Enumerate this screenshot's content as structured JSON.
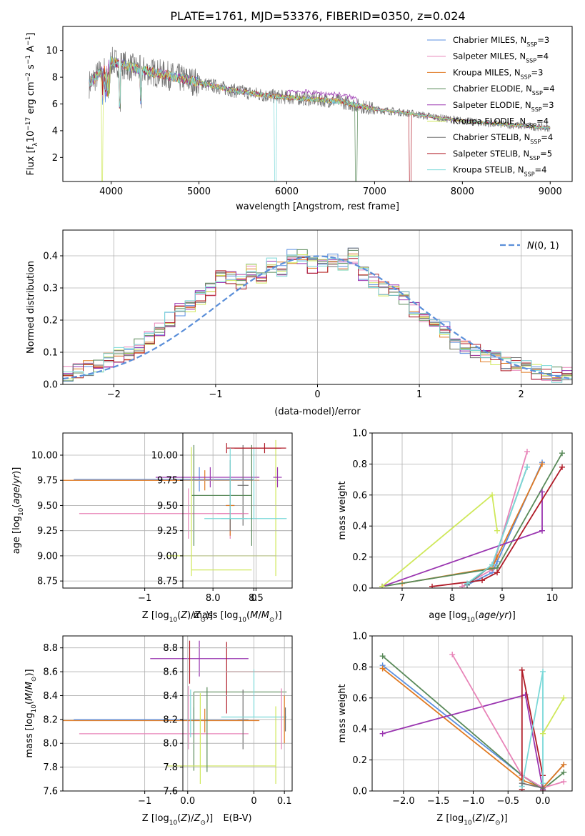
{
  "title": "PLATE=1761, MJD=53376, FIBERID=0350, z=0.024",
  "colors": {
    "chabrier_miles": "#5a8fe0",
    "salpeter_miles": "#e884b8",
    "kroupa_miles": "#e07a22",
    "chabrier_elodie": "#5a8a5a",
    "salpeter_elodie": "#9a35b0",
    "kroupa_elodie": "#cfe85a",
    "chabrier_stelib": "#707070",
    "salpeter_stelib": "#b01c28",
    "kroupa_stelib": "#7ad8d8",
    "normal": "#5b8fd9",
    "grid": "#b0b0b0"
  },
  "chart_data": [
    {
      "id": "spectrum",
      "type": "line",
      "xlabel": "wavelength [Angstrom, rest frame]",
      "ylabel": "Flux [f",
      "xlim": [
        3450,
        9250
      ],
      "ylim": [
        0.2,
        11.8
      ],
      "xticks": [
        4000,
        5000,
        6000,
        7000,
        8000,
        9000
      ],
      "yticks": [
        2,
        4,
        6,
        8,
        10
      ],
      "legend_position": "top-right",
      "series": [
        {
          "name": "Chabrier MILES, N",
          "nssp": "=3",
          "key": "chabrier_miles"
        },
        {
          "name": "Salpeter MILES, N",
          "nssp": "=4",
          "key": "salpeter_miles"
        },
        {
          "name": "Kroupa MILES, N",
          "nssp": "=3",
          "key": "kroupa_miles"
        },
        {
          "name": "Chabrier ELODIE, N",
          "nssp": "=4",
          "key": "chabrier_elodie"
        },
        {
          "name": "Salpeter ELODIE, N",
          "nssp": "=3",
          "key": "salpeter_elodie"
        },
        {
          "name": "Kroupa ELODIE, N",
          "nssp": "=4",
          "key": "kroupa_elodie"
        },
        {
          "name": "Chabrier STELIB, N",
          "nssp": "=4",
          "key": "chabrier_stelib"
        },
        {
          "name": "Salpeter STELIB, N",
          "nssp": "=5",
          "key": "salpeter_stelib"
        },
        {
          "name": "Kroupa STELIB, N",
          "nssp": "=4",
          "key": "kroupa_stelib"
        }
      ],
      "data_x": [
        3750,
        4000,
        4300,
        4600,
        5000,
        5400,
        5800,
        6200,
        6600,
        7000,
        7400,
        7800,
        8200,
        8600,
        9000
      ],
      "data_y": [
        7.5,
        9.2,
        8.6,
        8.2,
        7.6,
        7.0,
        6.6,
        6.4,
        6.2,
        5.6,
        5.3,
        4.9,
        4.6,
        4.4,
        4.2
      ]
    },
    {
      "id": "residuals",
      "type": "histogram",
      "xlabel": "(data-model)/error",
      "ylabel": "Normed distribution",
      "xlim": [
        -2.5,
        2.5
      ],
      "ylim": [
        0,
        0.48
      ],
      "xticks": [
        -2,
        -1,
        0,
        1,
        2
      ],
      "yticks": [
        0.0,
        0.1,
        0.2,
        0.3,
        0.4
      ],
      "legend": "N(0,1)",
      "bins": [
        -2.5,
        -2.4,
        -2.3,
        -2.2,
        -2.1,
        -2.0,
        -1.9,
        -1.8,
        -1.7,
        -1.6,
        -1.5,
        -1.4,
        -1.3,
        -1.2,
        -1.1,
        -1.0,
        -0.9,
        -0.8,
        -0.7,
        -0.6,
        -0.5,
        -0.4,
        -0.3,
        -0.2,
        -0.1,
        0.0,
        0.1,
        0.2,
        0.3,
        0.4,
        0.5,
        0.6,
        0.7,
        0.8,
        0.9,
        1.0,
        1.1,
        1.2,
        1.3,
        1.4,
        1.5,
        1.6,
        1.7,
        1.8,
        1.9,
        2.0,
        2.1,
        2.2,
        2.3,
        2.4
      ],
      "approx_density": [
        0.035,
        0.04,
        0.05,
        0.06,
        0.075,
        0.09,
        0.1,
        0.12,
        0.14,
        0.17,
        0.2,
        0.23,
        0.25,
        0.27,
        0.3,
        0.33,
        0.33,
        0.32,
        0.35,
        0.34,
        0.37,
        0.36,
        0.4,
        0.4,
        0.37,
        0.37,
        0.39,
        0.37,
        0.4,
        0.34,
        0.32,
        0.3,
        0.3,
        0.27,
        0.23,
        0.2,
        0.19,
        0.17,
        0.13,
        0.12,
        0.1,
        0.09,
        0.08,
        0.06,
        0.06,
        0.05,
        0.04,
        0.035,
        0.03,
        0.03
      ]
    },
    {
      "id": "age_vs_z",
      "type": "errorbar",
      "xlabel": "Z [log",
      "ylabel": "age  [log",
      "xlim": [
        -1.75,
        0.35
      ],
      "ylim": [
        8.68,
        10.22
      ],
      "xticks": [
        -1,
        0
      ],
      "yticks": [
        8.75,
        9.0,
        9.25,
        9.5,
        9.75,
        10.0
      ],
      "points": [
        {
          "key": "chabrier_miles",
          "x": -0.5,
          "xerr": [
            1.15,
            0.5
          ],
          "y": 9.76,
          "yerr": [
            0.12,
            0.12
          ]
        },
        {
          "key": "salpeter_miles",
          "x": -0.6,
          "xerr": [
            1.0,
            0.55
          ],
          "y": 9.42,
          "yerr": [
            0.25,
            0.25
          ]
        },
        {
          "key": "kroupa_miles",
          "x": -0.45,
          "xerr": [
            1.3,
            0.5
          ],
          "y": 9.75,
          "yerr": [
            0.1,
            0.1
          ]
        },
        {
          "key": "chabrier_elodie",
          "x": -0.55,
          "xerr": [
            0.0,
            0.0
          ],
          "y": 9.6,
          "yerr": [
            0.5,
            0.5
          ]
        },
        {
          "key": "salpeter_elodie",
          "x": -0.4,
          "xerr": [
            0.5,
            0.45
          ],
          "y": 9.78,
          "yerr": [
            0.1,
            0.1
          ]
        },
        {
          "key": "kroupa_elodie",
          "x": 0.2,
          "xerr": [
            1.0,
            0.0
          ],
          "y": 9.0,
          "yerr": [
            0.2,
            1.15
          ]
        },
        {
          "key": "chabrier_stelib",
          "x": -0.1,
          "xerr": [
            0.05,
            0.05
          ],
          "y": 9.7,
          "yerr": [
            0.4,
            0.4
          ]
        },
        {
          "key": "salpeter_stelib",
          "x": -0.25,
          "xerr": [
            0.0,
            0.5
          ],
          "y": 10.07,
          "yerr": [
            0.05,
            0.05
          ]
        },
        {
          "key": "kroupa_stelib",
          "x": 0.0,
          "xerr": [
            0.3,
            0.3
          ],
          "y": 9.37,
          "yerr": [
            0.0,
            0.7
          ]
        }
      ]
    },
    {
      "id": "age_vs_mass",
      "type": "errorbar",
      "xlabel": "mass [log",
      "ylabel": "",
      "xlim": [
        7.65,
        8.92
      ],
      "ylim": [
        8.68,
        10.22
      ],
      "xticks": [
        8.0,
        8.5
      ],
      "yticks": [
        8.75,
        9.0,
        9.25,
        9.5,
        9.75,
        10.0
      ],
      "points": [
        {
          "key": "chabrier_miles",
          "x": 8.2,
          "xerr": [
            0.05,
            0.05
          ],
          "y": 9.5,
          "yerr": [
            0.3,
            0.3
          ]
        },
        {
          "key": "salpeter_miles",
          "x": 8.2,
          "xerr": [
            0.15,
            0.15
          ],
          "y": 9.42,
          "yerr": [
            0.25,
            0.25
          ]
        },
        {
          "key": "kroupa_miles",
          "x": 8.2,
          "xerr": [
            0.05,
            0.05
          ],
          "y": 9.5,
          "yerr": [
            0.3,
            0.3
          ]
        },
        {
          "key": "chabrier_elodie",
          "x": 8.45,
          "xerr": [
            0.7,
            0.0
          ],
          "y": 9.6,
          "yerr": [
            0.5,
            0.5
          ]
        },
        {
          "key": "salpeter_elodie",
          "x": 8.75,
          "xerr": [
            0.05,
            0.05
          ],
          "y": 9.78,
          "yerr": [
            0.1,
            0.1
          ]
        },
        {
          "key": "kroupa_elodie",
          "x": 7.75,
          "xerr": [
            0.0,
            0.7
          ],
          "y": 8.86,
          "yerr": [
            0.06,
            1.22
          ]
        },
        {
          "key": "chabrier_stelib",
          "x": 8.2,
          "xerr": [
            0.0,
            0.0
          ],
          "y": 9.6,
          "yerr": [
            0.35,
            0.35
          ]
        },
        {
          "key": "salpeter_stelib",
          "x": 8.6,
          "xerr": [
            0.35,
            0.25
          ],
          "y": 10.07,
          "yerr": [
            0.05,
            0.05
          ]
        },
        {
          "key": "kroupa_stelib",
          "x": 8.2,
          "xerr": [
            0.3,
            0.2
          ],
          "y": 9.37,
          "yerr": [
            0.0,
            0.7
          ]
        }
      ]
    },
    {
      "id": "weight_vs_age",
      "type": "line",
      "xlabel": "age  [log",
      "ylabel": "mass weight",
      "xlim": [
        6.4,
        10.4
      ],
      "ylim": [
        0,
        1.0
      ],
      "xticks": [
        7,
        8,
        9,
        10
      ],
      "yticks": [
        0.0,
        0.2,
        0.4,
        0.6,
        0.8,
        1.0
      ],
      "series": [
        {
          "key": "chabrier_miles",
          "x": [
            8.3,
            8.8,
            8.9,
            9.8
          ],
          "y": [
            0.02,
            0.1,
            0.17,
            0.81
          ]
        },
        {
          "key": "salpeter_miles",
          "x": [
            8.2,
            8.8,
            9.5
          ],
          "y": [
            0.01,
            0.12,
            0.88
          ]
        },
        {
          "key": "kroupa_miles",
          "x": [
            7.0,
            8.8,
            8.9,
            9.8
          ],
          "y": [
            0.03,
            0.13,
            0.2,
            0.8
          ]
        },
        {
          "key": "chabrier_elodie",
          "x": [
            6.6,
            8.9,
            10.2
          ],
          "y": [
            0.01,
            0.13,
            0.87
          ]
        },
        {
          "key": "salpeter_elodie",
          "x": [
            6.6,
            9.8,
            9.8
          ],
          "y": [
            0.01,
            0.37,
            0.62
          ]
        },
        {
          "key": "kroupa_elodie",
          "x": [
            6.6,
            8.8,
            8.9
          ],
          "y": [
            0.01,
            0.6,
            0.37
          ]
        },
        {
          "key": "chabrier_stelib",
          "x": [
            8.3,
            8.8,
            9.5
          ],
          "y": [
            0.02,
            0.15,
            0.78
          ]
        },
        {
          "key": "salpeter_stelib",
          "x": [
            7.6,
            8.6,
            8.9,
            10.2
          ],
          "y": [
            0.01,
            0.05,
            0.1,
            0.78
          ]
        },
        {
          "key": "kroupa_stelib",
          "x": [
            8.3,
            8.8,
            9.5
          ],
          "y": [
            0.03,
            0.15,
            0.78
          ]
        }
      ]
    },
    {
      "id": "mass_vs_z",
      "type": "errorbar",
      "xlabel": "Z [log",
      "ylabel": "mass [log",
      "xlim": [
        -1.75,
        0.35
      ],
      "ylim": [
        7.6,
        8.9
      ],
      "xticks": [
        -1,
        0
      ],
      "yticks": [
        7.6,
        7.8,
        8.0,
        8.2,
        8.4,
        8.6,
        8.8
      ],
      "points": [
        {
          "key": "chabrier_miles",
          "x": -0.55,
          "xerr": [
            1.1,
            0.5
          ],
          "y": 8.2,
          "yerr": [
            0.1,
            0.1
          ]
        },
        {
          "key": "salpeter_miles",
          "x": -0.6,
          "xerr": [
            1.0,
            0.55
          ],
          "y": 8.08,
          "yerr": [
            0.13,
            0.4
          ]
        },
        {
          "key": "kroupa_miles",
          "x": -0.45,
          "xerr": [
            1.3,
            0.5
          ],
          "y": 8.19,
          "yerr": [
            0.1,
            0.1
          ]
        },
        {
          "key": "chabrier_elodie",
          "x": -0.55,
          "xerr": [
            0.0,
            0.85
          ],
          "y": 8.43,
          "yerr": [
            0.66,
            0.0
          ]
        },
        {
          "key": "salpeter_elodie",
          "x": -0.5,
          "xerr": [
            0.45,
            0.45
          ],
          "y": 8.71,
          "yerr": [
            0.15,
            0.15
          ]
        },
        {
          "key": "kroupa_elodie",
          "x": 0.2,
          "xerr": [
            1.0,
            0.0
          ],
          "y": 7.81,
          "yerr": [
            0.15,
            0.5
          ]
        },
        {
          "key": "chabrier_stelib",
          "x": -0.1,
          "xerr": [
            0.05,
            0.05
          ],
          "y": 8.2,
          "yerr": [
            0.25,
            0.25
          ]
        },
        {
          "key": "salpeter_stelib",
          "x": -0.25,
          "xerr": [
            0.0,
            0.5
          ],
          "y": 8.6,
          "yerr": [
            0.35,
            0.25
          ]
        },
        {
          "key": "kroupa_stelib",
          "x": 0.0,
          "xerr": [
            0.3,
            0.3
          ],
          "y": 8.22,
          "yerr": [
            0.0,
            0.4
          ]
        }
      ]
    },
    {
      "id": "mass_vs_ebv",
      "type": "errorbar",
      "xlabel": "E(B-V)",
      "ylabel": "",
      "xlim": [
        -0.005,
        0.108
      ],
      "ylim": [
        7.6,
        8.9
      ],
      "xticks": [
        0.0,
        0.1
      ],
      "yticks": [
        7.6,
        7.8,
        8.0,
        8.2,
        8.4,
        8.6,
        8.8
      ],
      "points": [
        {
          "key": "salpeter_stelib",
          "x": 0.002,
          "yerr": [
            8.5,
            8.86
          ]
        },
        {
          "key": "kroupa_stelib",
          "x": 0.003,
          "yerr": [
            8.05,
            8.45
          ]
        },
        {
          "key": "kroupa_elodie",
          "x": 0.013,
          "yerr": [
            7.66,
            8.42
          ]
        },
        {
          "key": "chabrier_elodie",
          "x": 0.02,
          "yerr": [
            7.76,
            8.47
          ]
        },
        {
          "key": "salpeter_miles",
          "x": 0.097,
          "yerr": [
            7.95,
            8.46
          ]
        },
        {
          "key": "kroupa_miles",
          "x": 0.1,
          "yerr": [
            8.0,
            8.4
          ]
        },
        {
          "key": "chabrier_stelib",
          "x": 0.101,
          "yerr": [
            8.1,
            8.3
          ]
        }
      ]
    },
    {
      "id": "weight_vs_z",
      "type": "line",
      "xlabel": "Z [log",
      "ylabel": "mass weight",
      "xlim": [
        -2.45,
        0.42
      ],
      "ylim": [
        0,
        1.0
      ],
      "xticks": [
        -2.0,
        -1.5,
        -1.0,
        -0.5,
        0.0
      ],
      "yticks": [
        0.0,
        0.2,
        0.4,
        0.6,
        0.8,
        1.0
      ],
      "series": [
        {
          "key": "chabrier_miles",
          "x": [
            -2.3,
            -0.3,
            0.0,
            0.3
          ],
          "y": [
            0.81,
            0.1,
            0.02,
            0.17
          ]
        },
        {
          "key": "kroupa_miles",
          "x": [
            -2.3,
            -0.3,
            0.0,
            0.3
          ],
          "y": [
            0.79,
            0.07,
            0.02,
            0.17
          ]
        },
        {
          "key": "chabrier_elodie",
          "x": [
            -2.3,
            -0.3,
            0.0,
            0.3
          ],
          "y": [
            0.87,
            0.1,
            0.01,
            0.12
          ]
        },
        {
          "key": "salpeter_elodie",
          "x": [
            -2.3,
            -0.25,
            0.0
          ],
          "y": [
            0.37,
            0.62,
            0.01
          ]
        },
        {
          "key": "salpeter_miles",
          "x": [
            -1.3,
            -0.3,
            0.0,
            0.3
          ],
          "y": [
            0.88,
            0.1,
            0.02,
            0.06
          ]
        },
        {
          "key": "salpeter_stelib",
          "x": [
            -0.3,
            -0.3,
            0.0,
            0.0
          ],
          "y": [
            0.01,
            0.78,
            0.1,
            0.0
          ]
        },
        {
          "key": "kroupa_stelib",
          "x": [
            -0.3,
            0.0,
            0.0
          ],
          "y": [
            0.03,
            0.77,
            0.05
          ]
        },
        {
          "key": "kroupa_elodie",
          "x": [
            0.0,
            0.3
          ],
          "y": [
            0.37,
            0.6
          ]
        },
        {
          "key": "chabrier_stelib",
          "x": [
            -0.3,
            0.0
          ],
          "y": [
            0.05,
            0.02
          ]
        }
      ]
    }
  ]
}
